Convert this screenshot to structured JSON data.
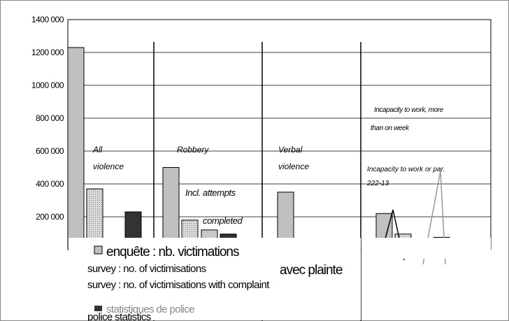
{
  "chart_data": {
    "type": "bar",
    "categories": [
      "All violence",
      "Robbery",
      "Verbal violence",
      "Incapacity to work or par. 222-13"
    ],
    "series": [
      {
        "name": "survey : no. of victimisations",
        "name_fr": "enquête : nb. victimations",
        "color": "#c0c0c0",
        "values": [
          1230000,
          500000,
          350000,
          220000
        ]
      },
      {
        "name": "survey : no. of victimisations with complaint",
        "name_fr": "avec plainte",
        "color": "#dcdcdc",
        "values": [
          370000,
          180000,
          null,
          95000
        ]
      },
      {
        "color": "#c8c8c8",
        "values": [
          null,
          120000,
          null,
          null
        ]
      },
      {
        "name": "police statistics",
        "name_fr": "statistiques de police",
        "color": "#333333",
        "values": [
          230000,
          95000,
          null,
          75000
        ]
      }
    ],
    "annotations": [
      "Incl. attempts",
      "completed",
      "Incapacity to work, more",
      "than on week"
    ],
    "ylim": [
      0,
      1400000
    ],
    "yticks": [
      {
        "value": 200000,
        "label": "200 000"
      },
      {
        "value": 400000,
        "label": "400 000"
      },
      {
        "value": 600000,
        "label": "600 000"
      },
      {
        "value": 800000,
        "label": "800 000"
      },
      {
        "value": 1000000,
        "label": "1000 000"
      },
      {
        "value": 1200000,
        "label": "1200 000"
      },
      {
        "value": 1400000,
        "label": "1400 000"
      }
    ],
    "grid": true
  }
}
